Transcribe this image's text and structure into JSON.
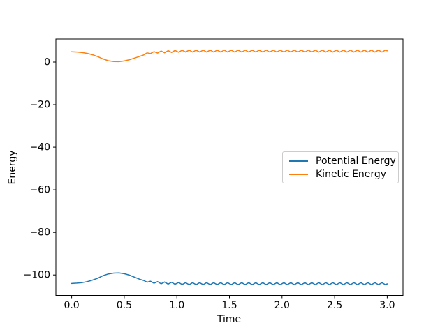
{
  "figure": {
    "background": "#ffffff"
  },
  "chart_data": {
    "type": "line",
    "xlabel": "Time",
    "ylabel": "Energy",
    "xlim": [
      -0.15,
      3.15
    ],
    "ylim": [
      -109.6,
      10.8
    ],
    "grid": false,
    "axis_color": "#000000",
    "xticks": {
      "values": [
        0,
        0.5,
        1.0,
        1.5,
        2.0,
        2.5,
        3.0
      ],
      "labels": [
        "0.0",
        "0.5",
        "1.0",
        "1.5",
        "2.0",
        "2.5",
        "3.0"
      ]
    },
    "yticks": {
      "values": [
        0,
        -20,
        -40,
        -60,
        -80,
        -100
      ],
      "labels": [
        "0",
        "−20",
        "−40",
        "−60",
        "−80",
        "−100"
      ]
    },
    "legend": {
      "position": "center-right",
      "entries": [
        {
          "label": "Potential Energy",
          "color": "#1f77b4"
        },
        {
          "label": "Kinetic Energy",
          "color": "#ff7f0e"
        }
      ]
    },
    "x": [
      0,
      0.05,
      0.1,
      0.15,
      0.2,
      0.25,
      0.3,
      0.35,
      0.4,
      0.45,
      0.5,
      0.55,
      0.6,
      0.65,
      0.683,
      0.717,
      0.75,
      0.783,
      0.817,
      0.85,
      0.883,
      0.917,
      0.95,
      0.983,
      1.017,
      1.05,
      1.083,
      1.117,
      1.15,
      1.183,
      1.217,
      1.25,
      1.283,
      1.317,
      1.35,
      1.383,
      1.417,
      1.45,
      1.483,
      1.517,
      1.55,
      1.583,
      1.617,
      1.65,
      1.683,
      1.717,
      1.75,
      1.783,
      1.817,
      1.85,
      1.883,
      1.917,
      1.95,
      1.983,
      2.017,
      2.05,
      2.083,
      2.117,
      2.15,
      2.183,
      2.217,
      2.25,
      2.283,
      2.317,
      2.35,
      2.383,
      2.417,
      2.45,
      2.483,
      2.517,
      2.55,
      2.583,
      2.617,
      2.65,
      2.683,
      2.717,
      2.75,
      2.783,
      2.817,
      2.85,
      2.883,
      2.917,
      2.95,
      2.983,
      3.0
    ],
    "series": [
      {
        "name": "Potential Energy",
        "color": "#1f77b4",
        "values": [
          -104.0,
          -103.85,
          -103.6,
          -103.1,
          -102.4,
          -101.5,
          -100.3,
          -99.5,
          -99.1,
          -99.05,
          -99.4,
          -100.1,
          -101.1,
          -102.1,
          -102.55,
          -103.4,
          -102.95,
          -103.9,
          -103.15,
          -104.15,
          -103.3,
          -104.3,
          -103.45,
          -104.4,
          -103.55,
          -104.5,
          -103.65,
          -104.55,
          -103.65,
          -104.55,
          -103.65,
          -104.55,
          -103.65,
          -104.55,
          -103.65,
          -104.55,
          -103.65,
          -104.55,
          -103.65,
          -104.55,
          -103.65,
          -104.55,
          -103.65,
          -104.55,
          -103.65,
          -104.55,
          -103.65,
          -104.55,
          -103.65,
          -104.55,
          -103.65,
          -104.55,
          -103.65,
          -104.55,
          -103.65,
          -104.55,
          -103.65,
          -104.55,
          -103.65,
          -104.55,
          -103.65,
          -104.55,
          -103.65,
          -104.55,
          -103.65,
          -104.55,
          -103.65,
          -104.55,
          -103.65,
          -104.55,
          -103.65,
          -104.55,
          -103.65,
          -104.55,
          -103.65,
          -104.55,
          -103.65,
          -104.55,
          -103.65,
          -104.55,
          -103.65,
          -104.55,
          -103.65,
          -104.55,
          -104.2
        ]
      },
      {
        "name": "Kinetic Energy",
        "color": "#ff7f0e",
        "values": [
          4.8,
          4.7,
          4.45,
          4.05,
          3.4,
          2.5,
          1.4,
          0.6,
          0.25,
          0.2,
          0.5,
          1.1,
          1.9,
          2.7,
          3.3,
          4.3,
          4.0,
          4.9,
          4.2,
          5.2,
          4.35,
          5.35,
          4.5,
          5.45,
          4.6,
          5.55,
          4.7,
          5.6,
          4.7,
          5.6,
          4.7,
          5.6,
          4.7,
          5.6,
          4.7,
          5.6,
          4.7,
          5.6,
          4.7,
          5.6,
          4.7,
          5.6,
          4.7,
          5.6,
          4.7,
          5.6,
          4.7,
          5.6,
          4.7,
          5.6,
          4.7,
          5.6,
          4.7,
          5.6,
          4.7,
          5.6,
          4.7,
          5.6,
          4.7,
          5.6,
          4.7,
          5.6,
          4.7,
          5.6,
          4.7,
          5.6,
          4.7,
          5.6,
          4.7,
          5.6,
          4.7,
          5.6,
          4.7,
          5.6,
          4.7,
          5.6,
          4.7,
          5.6,
          4.7,
          5.6,
          4.7,
          5.6,
          4.7,
          5.6,
          5.3
        ]
      }
    ]
  }
}
